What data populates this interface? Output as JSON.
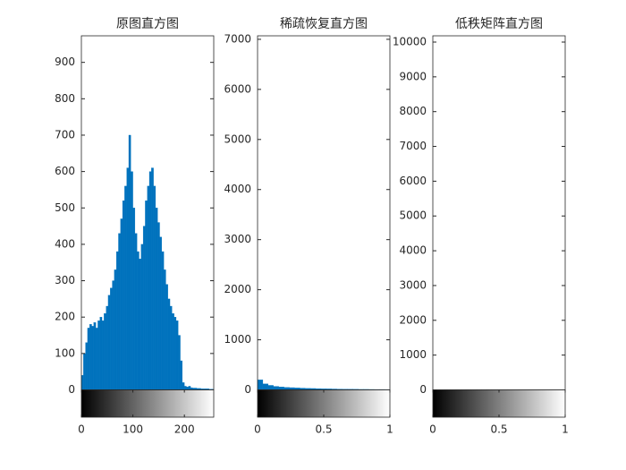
{
  "chart_data": [
    {
      "type": "histogram",
      "title": "原图直方图",
      "color": "#0072bd",
      "bins": [
        0,
        4,
        8,
        12,
        16,
        20,
        24,
        28,
        32,
        36,
        40,
        44,
        48,
        52,
        56,
        60,
        64,
        68,
        72,
        76,
        80,
        84,
        88,
        92,
        96,
        100,
        104,
        108,
        112,
        116,
        120,
        124,
        128,
        132,
        136,
        140,
        144,
        148,
        152,
        156,
        160,
        164,
        168,
        172,
        176,
        180,
        184,
        188,
        192,
        196,
        200,
        204,
        208,
        212,
        216,
        220,
        224,
        228,
        232,
        236,
        240,
        244,
        248,
        252,
        256
      ],
      "values": [
        40,
        100,
        130,
        170,
        180,
        175,
        185,
        170,
        190,
        200,
        190,
        210,
        230,
        260,
        280,
        300,
        330,
        380,
        430,
        470,
        520,
        560,
        610,
        700,
        600,
        500,
        430,
        380,
        360,
        400,
        450,
        520,
        560,
        600,
        610,
        560,
        500,
        460,
        420,
        380,
        330,
        290,
        250,
        230,
        210,
        200,
        190,
        150,
        80,
        20,
        10,
        8,
        10,
        6,
        5,
        5,
        4,
        4,
        3,
        3,
        3,
        3,
        2,
        2
      ],
      "xlim": [
        0,
        257
      ],
      "ylim": [
        0,
        973
      ],
      "xticks": [
        0,
        100,
        200
      ],
      "yticks": [
        0,
        100,
        200,
        300,
        400,
        500,
        600,
        700,
        800,
        900
      ]
    },
    {
      "type": "histogram",
      "title": "稀疏恢复直方图",
      "color": "#0072bd",
      "bins": [
        0,
        0.04,
        0.08,
        0.12,
        0.16,
        0.2,
        0.24,
        0.28,
        0.32,
        0.36,
        0.4,
        0.44,
        0.48,
        0.52,
        0.56,
        0.6,
        0.64,
        0.68,
        0.72,
        0.76,
        0.8,
        0.84,
        0.88,
        0.92,
        0.96,
        1
      ],
      "values": [
        200,
        120,
        90,
        70,
        60,
        50,
        45,
        40,
        35,
        30,
        28,
        25,
        22,
        20,
        18,
        16,
        15,
        14,
        12,
        10,
        10,
        9,
        8,
        8,
        7
      ],
      "xlim": [
        0,
        1
      ],
      "ylim": [
        0,
        7070
      ],
      "xticks": [
        0,
        0.5,
        1
      ],
      "yticks": [
        0,
        1000,
        2000,
        3000,
        4000,
        5000,
        6000,
        7000
      ]
    },
    {
      "type": "histogram",
      "title": "低秩矩阵直方图",
      "color": "#0072bd",
      "bins": [
        0,
        0.04,
        0.08,
        0.12,
        0.16,
        0.2,
        0.24,
        0.28,
        0.32,
        0.36,
        0.4,
        0.44,
        0.48,
        0.52,
        0.56,
        0.6,
        0.64,
        0.68,
        0.72,
        0.76,
        0.8,
        0.84,
        0.88,
        0.92,
        0.96,
        1
      ],
      "values": [
        0,
        0,
        0,
        0,
        0,
        0,
        0,
        0,
        0,
        0,
        0,
        0,
        0,
        0,
        0,
        0,
        0,
        0,
        0,
        0,
        0,
        0,
        0,
        0,
        0
      ],
      "xlim": [
        0,
        1
      ],
      "ylim": [
        0,
        10180
      ],
      "xticks": [
        0,
        0.5,
        1
      ],
      "yticks": [
        0,
        1000,
        2000,
        3000,
        4000,
        5000,
        6000,
        7000,
        8000,
        9000,
        10000
      ]
    }
  ]
}
